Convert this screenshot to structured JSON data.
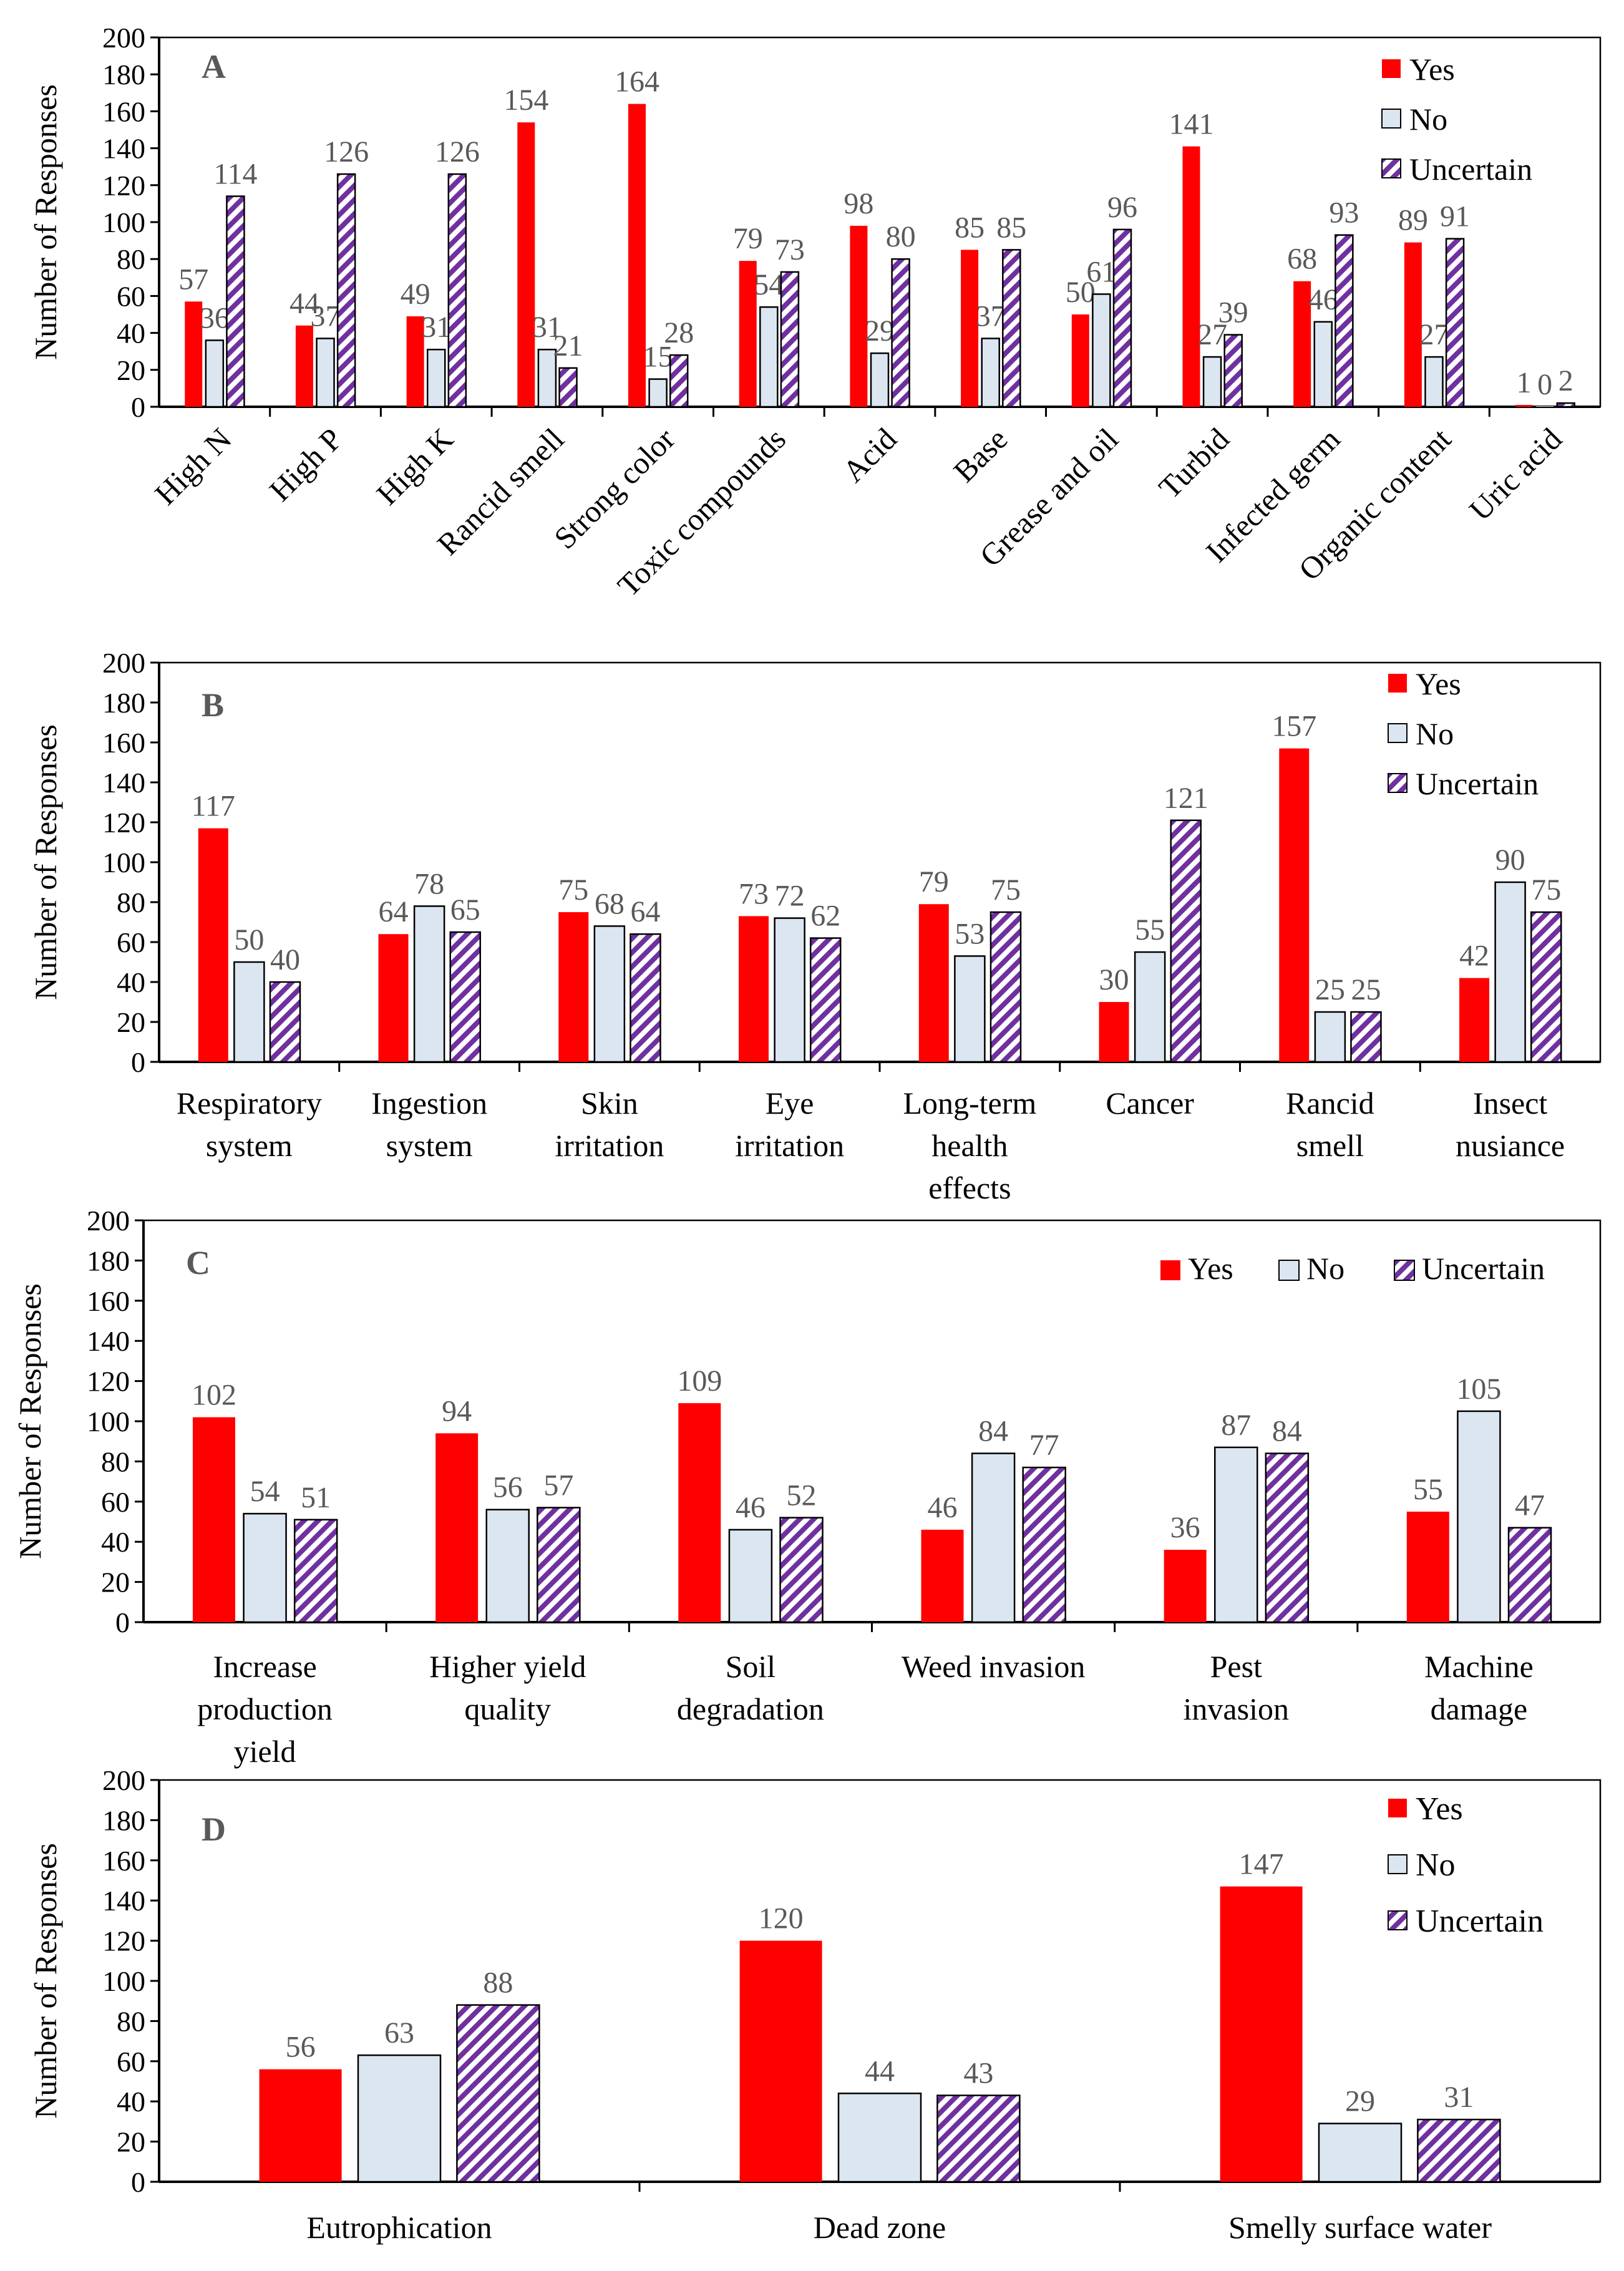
{
  "figure": {
    "legend_labels": [
      "Yes",
      "No",
      "Uncertain"
    ],
    "y_axis_label": "Number of Responses",
    "y_ticks": [
      "0",
      "20",
      "40",
      "60",
      "80",
      "100",
      "120",
      "140",
      "160",
      "180",
      "200"
    ]
  },
  "colors": {
    "yes": "#ff0000",
    "no": "#dce6f1",
    "uncertain_stripe": "#7030a0",
    "axis": "#000000",
    "label_gray": "#595959"
  },
  "chart_data": [
    {
      "type": "bar",
      "panel": "A",
      "ylabel": "Number of Responses",
      "ylim": [
        0,
        200
      ],
      "legend": "top-right, stacked",
      "categories": [
        [
          "High N"
        ],
        [
          "High P"
        ],
        [
          "High K"
        ],
        [
          "Rancid smell"
        ],
        [
          "Strong color"
        ],
        [
          "Toxic compounds"
        ],
        [
          "Acid"
        ],
        [
          "Base"
        ],
        [
          "Grease and oil"
        ],
        [
          "Turbid"
        ],
        [
          "Infected germ"
        ],
        [
          "Organic content"
        ],
        [
          "Uric acid"
        ]
      ],
      "series": [
        {
          "name": "Yes",
          "values": [
            57,
            44,
            49,
            154,
            164,
            79,
            98,
            85,
            50,
            141,
            68,
            89,
            1
          ]
        },
        {
          "name": "No",
          "values": [
            36,
            37,
            31,
            31,
            15,
            54,
            29,
            37,
            61,
            27,
            46,
            27,
            0
          ]
        },
        {
          "name": "Uncertain",
          "values": [
            114,
            126,
            126,
            21,
            28,
            73,
            80,
            85,
            96,
            39,
            93,
            91,
            2
          ]
        }
      ]
    },
    {
      "type": "bar",
      "panel": "B",
      "ylabel": "Number of Responses",
      "ylim": [
        0,
        200
      ],
      "legend": "top-right, stacked",
      "categories": [
        [
          "Respiratory",
          "system"
        ],
        [
          "Ingestion",
          "system"
        ],
        [
          "Skin",
          "irritation"
        ],
        [
          "Eye",
          "irritation"
        ],
        [
          "Long-term",
          "health",
          "effects"
        ],
        [
          "Cancer"
        ],
        [
          "Rancid",
          "smell"
        ],
        [
          "Insect",
          "nusiance"
        ]
      ],
      "series": [
        {
          "name": "Yes",
          "values": [
            117,
            64,
            75,
            73,
            79,
            30,
            157,
            42
          ]
        },
        {
          "name": "No",
          "values": [
            50,
            78,
            68,
            72,
            53,
            55,
            25,
            90
          ]
        },
        {
          "name": "Uncertain",
          "values": [
            40,
            65,
            64,
            62,
            75,
            121,
            25,
            75
          ]
        }
      ]
    },
    {
      "type": "bar",
      "panel": "C",
      "ylabel": "Number of Responses",
      "ylim": [
        0,
        200
      ],
      "legend": "top-right, horizontal",
      "categories": [
        [
          "Increase",
          "production",
          "yield"
        ],
        [
          "Higher yield",
          "quality"
        ],
        [
          "Soil",
          "degradation"
        ],
        [
          "Weed invasion"
        ],
        [
          "Pest",
          "invasion"
        ],
        [
          "Machine",
          "damage"
        ]
      ],
      "series": [
        {
          "name": "Yes",
          "values": [
            102,
            94,
            109,
            46,
            36,
            55
          ]
        },
        {
          "name": "No",
          "values": [
            54,
            56,
            46,
            84,
            87,
            105
          ]
        },
        {
          "name": "Uncertain",
          "values": [
            51,
            57,
            52,
            77,
            84,
            47
          ]
        }
      ]
    },
    {
      "type": "bar",
      "panel": "D",
      "ylabel": "Number of Responses",
      "ylim": [
        0,
        200
      ],
      "legend": "top-right, stacked",
      "categories": [
        [
          "Eutrophication"
        ],
        [
          "Dead zone"
        ],
        [
          "Smelly surface water"
        ]
      ],
      "series": [
        {
          "name": "Yes",
          "values": [
            56,
            120,
            147
          ]
        },
        {
          "name": "No",
          "values": [
            63,
            44,
            29
          ]
        },
        {
          "name": "Uncertain",
          "values": [
            88,
            43,
            31
          ]
        }
      ]
    }
  ]
}
